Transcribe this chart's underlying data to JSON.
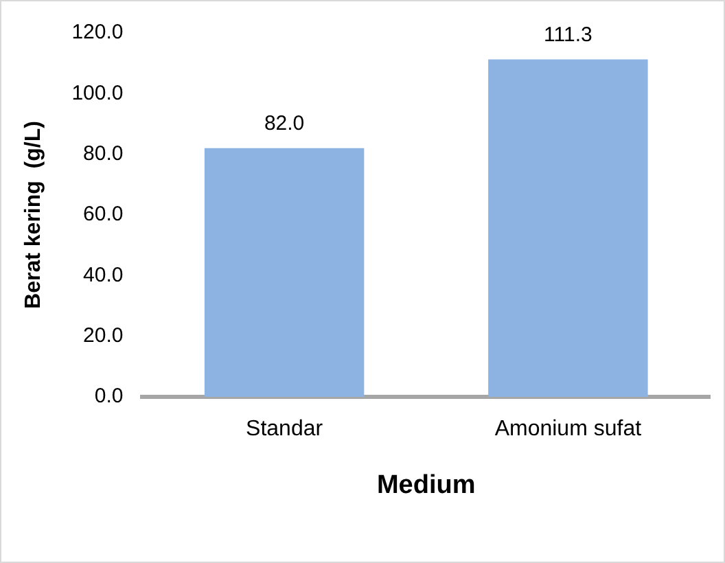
{
  "chart_data": {
    "type": "bar",
    "xlabel": "Medium",
    "ylabel": "Berat kering  (g/L)",
    "categories": [
      "Standar",
      "Amonium sufat"
    ],
    "values": [
      82.0,
      111.3
    ],
    "value_labels": [
      "82.0",
      "111.3"
    ],
    "color": "#8db3e2",
    "ylim": [
      0,
      120
    ],
    "yticks": [
      {
        "value": 0,
        "label": "0.0"
      },
      {
        "value": 20,
        "label": "20.0"
      },
      {
        "value": 40,
        "label": "40.0"
      },
      {
        "value": 60,
        "label": "60.0"
      },
      {
        "value": 80,
        "label": "80.0"
      },
      {
        "value": 100,
        "label": "100.0"
      },
      {
        "value": 120,
        "label": "120.0"
      }
    ],
    "grid": false,
    "legend": false
  }
}
